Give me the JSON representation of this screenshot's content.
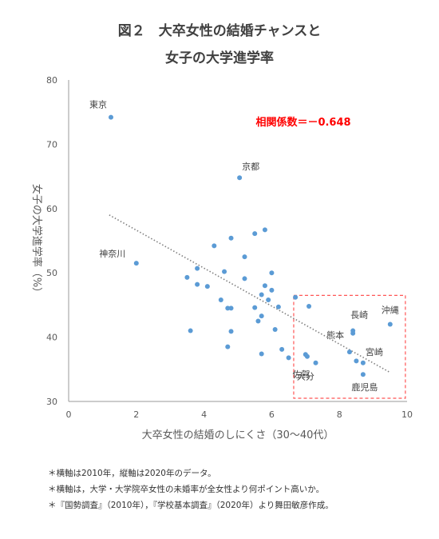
{
  "title_line1": "図２　大卒女性の結婚チャンスと",
  "title_line2": "女子の大学進学率",
  "chart_data": {
    "type": "scatter",
    "xlabel": "大卒女性の結婚のしにくさ（30〜40代）",
    "ylabel": "女子の大学進学率（%）",
    "xlim": [
      0,
      10
    ],
    "ylim": [
      30,
      80
    ],
    "xticks": [
      0,
      2,
      4,
      6,
      8,
      10
    ],
    "yticks": [
      30,
      40,
      50,
      60,
      70,
      80
    ],
    "grid": false,
    "correlation_label": "相関係数＝－0.648",
    "trendline": {
      "x": [
        1.2,
        9.5
      ],
      "y": [
        59.0,
        34.5
      ]
    },
    "points": [
      {
        "x": 1.25,
        "y": 74.2,
        "label": "東京"
      },
      {
        "x": 5.05,
        "y": 64.8,
        "label": "京都"
      },
      {
        "x": 2.0,
        "y": 51.5,
        "label": "神奈川"
      },
      {
        "x": 9.5,
        "y": 42.0,
        "label": "沖縄"
      },
      {
        "x": 8.4,
        "y": 41.0,
        "label": "長崎"
      },
      {
        "x": 8.4,
        "y": 40.6,
        "label": "熊本"
      },
      {
        "x": 8.7,
        "y": 36.0,
        "label": "宮崎"
      },
      {
        "x": 7.3,
        "y": 36.0,
        "label": "佐賀"
      },
      {
        "x": 7.05,
        "y": 37.0,
        "label": "大分"
      },
      {
        "x": 8.7,
        "y": 34.2,
        "label": "鹿児島"
      },
      {
        "x": 3.6,
        "y": 41.0,
        "label": ""
      },
      {
        "x": 3.5,
        "y": 49.3,
        "label": ""
      },
      {
        "x": 3.8,
        "y": 50.7,
        "label": ""
      },
      {
        "x": 3.8,
        "y": 48.2,
        "label": ""
      },
      {
        "x": 4.1,
        "y": 47.9,
        "label": ""
      },
      {
        "x": 4.3,
        "y": 54.2,
        "label": ""
      },
      {
        "x": 4.6,
        "y": 50.2,
        "label": ""
      },
      {
        "x": 4.5,
        "y": 45.8,
        "label": ""
      },
      {
        "x": 4.7,
        "y": 44.5,
        "label": ""
      },
      {
        "x": 4.8,
        "y": 44.5,
        "label": ""
      },
      {
        "x": 4.8,
        "y": 55.4,
        "label": ""
      },
      {
        "x": 4.8,
        "y": 40.9,
        "label": ""
      },
      {
        "x": 4.7,
        "y": 38.5,
        "label": ""
      },
      {
        "x": 5.2,
        "y": 52.5,
        "label": ""
      },
      {
        "x": 5.2,
        "y": 49.1,
        "label": ""
      },
      {
        "x": 5.5,
        "y": 56.1,
        "label": ""
      },
      {
        "x": 5.5,
        "y": 44.6,
        "label": ""
      },
      {
        "x": 5.6,
        "y": 42.5,
        "label": ""
      },
      {
        "x": 5.7,
        "y": 46.6,
        "label": ""
      },
      {
        "x": 5.8,
        "y": 56.7,
        "label": ""
      },
      {
        "x": 5.8,
        "y": 48.0,
        "label": ""
      },
      {
        "x": 5.9,
        "y": 45.8,
        "label": ""
      },
      {
        "x": 5.7,
        "y": 43.3,
        "label": ""
      },
      {
        "x": 5.7,
        "y": 37.4,
        "label": ""
      },
      {
        "x": 6.0,
        "y": 50.0,
        "label": ""
      },
      {
        "x": 6.0,
        "y": 47.3,
        "label": ""
      },
      {
        "x": 6.1,
        "y": 41.2,
        "label": ""
      },
      {
        "x": 6.2,
        "y": 44.7,
        "label": ""
      },
      {
        "x": 6.3,
        "y": 38.1,
        "label": ""
      },
      {
        "x": 6.5,
        "y": 36.8,
        "label": ""
      },
      {
        "x": 6.7,
        "y": 46.2,
        "label": ""
      },
      {
        "x": 7.1,
        "y": 44.8,
        "label": ""
      },
      {
        "x": 7.0,
        "y": 37.3,
        "label": ""
      },
      {
        "x": 8.3,
        "y": 37.7,
        "label": ""
      },
      {
        "x": 8.5,
        "y": 36.3,
        "label": ""
      }
    ],
    "highlight_box": {
      "x": [
        6.65,
        9.95
      ],
      "y": [
        30.5,
        46.5
      ]
    },
    "point_color": "#5b9bd5",
    "trend_color": "#7f7f7f",
    "highlight_color": "#ff5555",
    "correlation_color": "#ff0000"
  },
  "notes": [
    "＊横軸は2010年，縦軸は2020年のデータ。",
    "＊横軸は，大学・大学院卒女性の未婚率が全女性より何ポイント高いか。",
    "＊『国勢調査』（2010年），『学校基本調査』（2020年）より舞田敏彦作成。"
  ]
}
